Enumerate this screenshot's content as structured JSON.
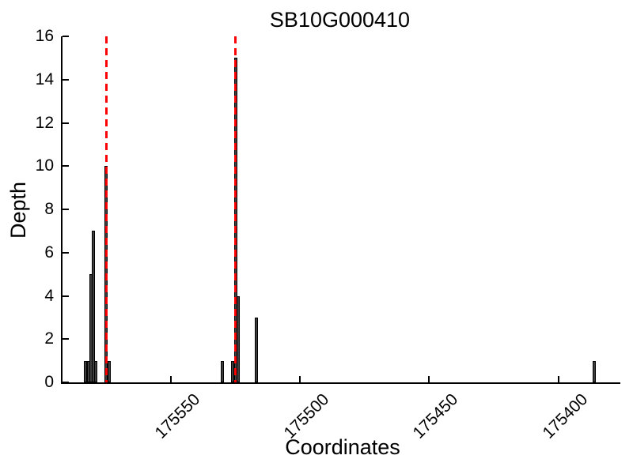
{
  "chart_data": {
    "type": "bar",
    "title": "SB10G000410",
    "xlabel": "Coordinates",
    "ylabel": "Depth",
    "x_axis": {
      "tick_values": [
        175550,
        175500,
        175450,
        175400
      ],
      "tick_labels": [
        "175550",
        "175500",
        "175450",
        "175400"
      ],
      "range_left": 175592,
      "range_right": 175376,
      "reversed": true,
      "tick_label_rotation_deg": 45
    },
    "y_axis": {
      "tick_values": [
        0,
        2,
        4,
        6,
        8,
        10,
        12,
        14,
        16
      ],
      "min": 0,
      "max": 16
    },
    "bars": [
      {
        "coordinate": 175583,
        "depth": 1
      },
      {
        "coordinate": 175582,
        "depth": 1
      },
      {
        "coordinate": 175581,
        "depth": 5
      },
      {
        "coordinate": 175580,
        "depth": 7
      },
      {
        "coordinate": 175579,
        "depth": 1
      },
      {
        "coordinate": 175575,
        "depth": 10
      },
      {
        "coordinate": 175574,
        "depth": 1
      },
      {
        "coordinate": 175530,
        "depth": 1
      },
      {
        "coordinate": 175526,
        "depth": 1
      },
      {
        "coordinate": 175525,
        "depth": 15
      },
      {
        "coordinate": 175524,
        "depth": 4
      },
      {
        "coordinate": 175517,
        "depth": 3
      },
      {
        "coordinate": 175386,
        "depth": 1
      }
    ],
    "marker_lines": {
      "positions": [
        175575,
        175525
      ],
      "color": "#ff0000",
      "style": "dashed"
    },
    "colors": {
      "bar_fill": "#3f3f3f",
      "bar_edge": "#000000",
      "axis": "#000000",
      "background": "#ffffff"
    },
    "grid": "off",
    "legend": "none"
  }
}
